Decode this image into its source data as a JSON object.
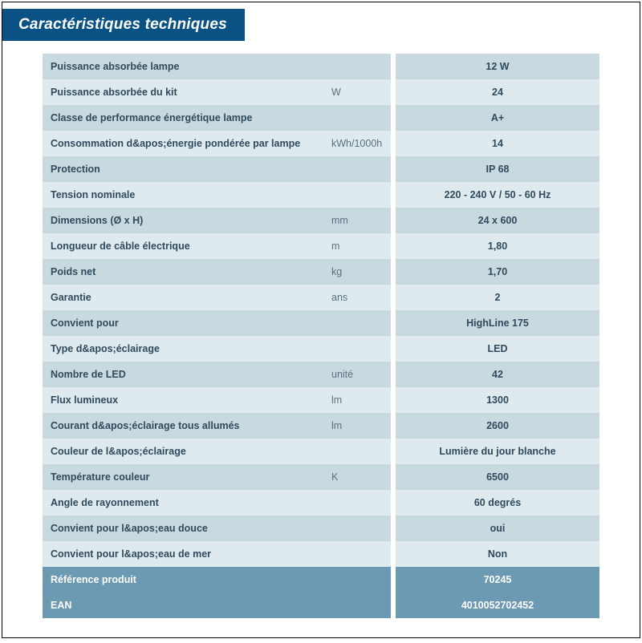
{
  "header": {
    "title": "Caractéristiques techniques"
  },
  "table": {
    "rows": [
      {
        "label": "Puissance absorbée lampe",
        "unit": "",
        "value": "12 W",
        "variant": "odd"
      },
      {
        "label": "Puissance absorbée du kit",
        "unit": "W",
        "value": "24",
        "variant": "even"
      },
      {
        "label": "Classe de performance énergétique lampe",
        "unit": "",
        "value": "A+",
        "variant": "odd"
      },
      {
        "label": "Consommation d&apos;énergie pondérée par lampe",
        "unit": "kWh/1000h",
        "value": "14",
        "variant": "even"
      },
      {
        "label": "Protection",
        "unit": "",
        "value": "IP 68",
        "variant": "odd"
      },
      {
        "label": "Tension nominale",
        "unit": "",
        "value": "220 - 240 V / 50 - 60 Hz",
        "variant": "even"
      },
      {
        "label": "Dimensions (Ø x H)",
        "unit": "mm",
        "value": "24 x 600",
        "variant": "odd"
      },
      {
        "label": "Longueur de câble électrique",
        "unit": "m",
        "value": "1,80",
        "variant": "even"
      },
      {
        "label": "Poids net",
        "unit": "kg",
        "value": "1,70",
        "variant": "odd"
      },
      {
        "label": "Garantie",
        "unit": "ans",
        "value": "2",
        "variant": "even"
      },
      {
        "label": "Convient pour",
        "unit": "",
        "value": "HighLine 175",
        "variant": "odd"
      },
      {
        "label": "Type d&apos;éclairage",
        "unit": "",
        "value": "LED",
        "variant": "even"
      },
      {
        "label": "Nombre de LED",
        "unit": "unité",
        "value": "42",
        "variant": "odd"
      },
      {
        "label": "Flux lumineux",
        "unit": "lm",
        "value": "1300",
        "variant": "even"
      },
      {
        "label": "Courant d&apos;éclairage tous allumés",
        "unit": "lm",
        "value": "2600",
        "variant": "odd"
      },
      {
        "label": "Couleur de l&apos;éclairage",
        "unit": "",
        "value": "Lumière du jour blanche",
        "variant": "even"
      },
      {
        "label": "Température couleur",
        "unit": "K",
        "value": "6500",
        "variant": "odd"
      },
      {
        "label": "Angle de rayonnement",
        "unit": "",
        "value": "60 degrés",
        "variant": "even"
      },
      {
        "label": "Convient pour l&apos;eau douce",
        "unit": "",
        "value": "oui",
        "variant": "odd"
      },
      {
        "label": "Convient pour l&apos;eau de mer",
        "unit": "",
        "value": "Non",
        "variant": "even"
      },
      {
        "label": "Référence produit",
        "unit": "",
        "value": "70245",
        "variant": "highlight"
      },
      {
        "label": "EAN",
        "unit": "",
        "value": "4010052702452",
        "variant": "highlight"
      }
    ]
  },
  "colors": {
    "header_bg": "#0a5283",
    "row_odd_bg": "#c8d9e0",
    "row_even_bg": "#dfeaef",
    "highlight_bg": "#6c9ab3",
    "text": "#2e4a5c",
    "page_bg": "#ffffff"
  }
}
